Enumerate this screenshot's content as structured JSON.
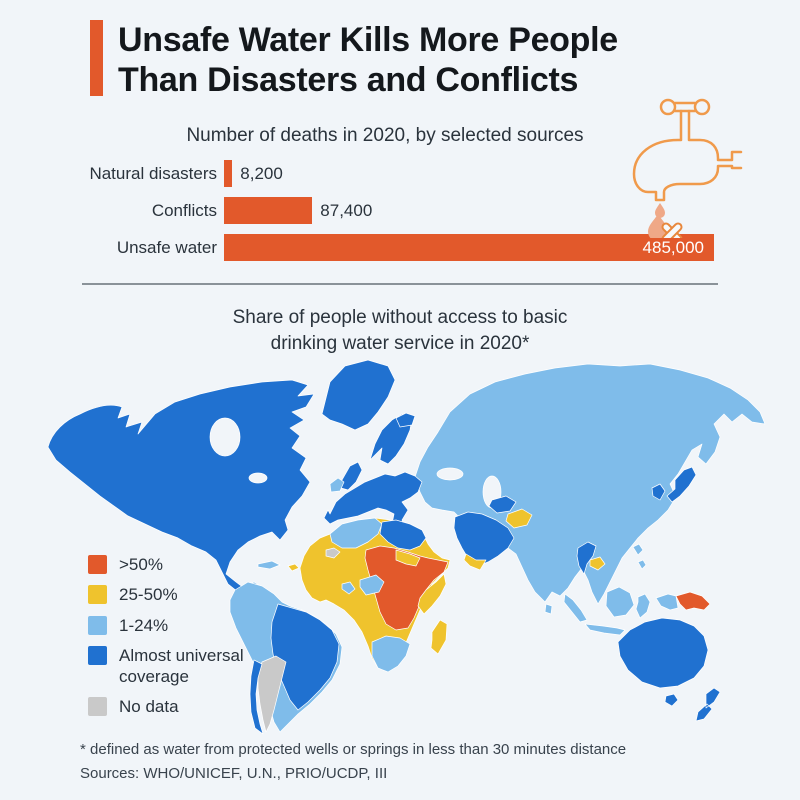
{
  "colors": {
    "background": "#F1F5F9",
    "accent": "#E2592B",
    "title_text": "#14181C",
    "body_text": "#2A333C",
    "muted_text": "#39434D",
    "divider": "#8A9299",
    "bar_value_inside": "#FFFFFF",
    "faucet_outline": "#F09A4B",
    "drop_fill": "#EFA887",
    "bones_fill": "#F7F9FB",
    "bones_outline": "#E8873C"
  },
  "header": {
    "title_line1": "Unsafe Water Kills More People",
    "title_line2": "Than Disasters and Conflicts"
  },
  "chart_data": [
    {
      "type": "bar",
      "orientation": "horizontal",
      "title": "Number of deaths in 2020, by selected sources",
      "categories": [
        "Natural disasters",
        "Conflicts",
        "Unsafe water"
      ],
      "values": [
        8200,
        87400,
        485000
      ],
      "value_labels": [
        "8,200",
        "87,400",
        "485,000"
      ],
      "xlim": [
        0,
        485000
      ],
      "bar_color": "#E2592B"
    },
    {
      "type": "choropleth",
      "title": "Share of people without access to basic drinking water service in 2020*",
      "categories": [
        ">50%",
        "25-50%",
        "1-24%",
        "Almost universal coverage",
        "No data"
      ],
      "legend_position": "bottom-left"
    }
  ],
  "map": {
    "title_line1": "Share of people without access to basic",
    "title_line2": "drinking water service in 2020*",
    "legend": [
      {
        "key": "gt50",
        "label": ">50%",
        "color": "#E2592B"
      },
      {
        "key": "mid",
        "label": "25-50%",
        "color": "#EFC32D"
      },
      {
        "key": "low",
        "label": "1-24%",
        "color": "#7FBCEA"
      },
      {
        "key": "universal",
        "label": "Almost universal coverage",
        "color": "#2071D0"
      },
      {
        "key": "nodata",
        "label": "No data",
        "color": "#C9C9C9"
      }
    ],
    "regions": {
      "north-america": "universal",
      "greenland": "universal",
      "central-america": "low",
      "cuba": "low",
      "haiti": "mid",
      "south-america": "low",
      "brazil": "universal",
      "argentina": "nodata",
      "chile": "universal",
      "iceland": "universal",
      "uk": "universal",
      "ireland": "low",
      "scandinavia": "universal",
      "europe-mainland": "universal",
      "eurasia": "low",
      "turkmenistan": "universal",
      "afghanistan": "mid",
      "arabia": "universal",
      "yemen": "mid",
      "thailand": "universal",
      "cambodia": "mid",
      "korea": "universal",
      "japan": "universal",
      "philippines": "low",
      "indonesia": "low",
      "west-new-guinea": "low",
      "papua-new-guinea": "gt50",
      "australia": "universal",
      "tasmania": "universal",
      "new-zealand": "universal",
      "africa": "mid",
      "africa-northwest": "low",
      "western-sahara": "nodata",
      "libya-egypt": "universal",
      "central-east-africa": "gt50",
      "sudan": "mid",
      "kenya-tanzania": "mid",
      "nigeria": "low",
      "ghana": "low",
      "southern-africa": "low",
      "madagascar": "mid",
      "sri-lanka": "low"
    }
  },
  "footer": {
    "footnote": "* defined as water from protected wells or springs in less than 30 minutes distance",
    "sources": "Sources: WHO/UNICEF, U.N., PRIO/UCDP, III"
  }
}
